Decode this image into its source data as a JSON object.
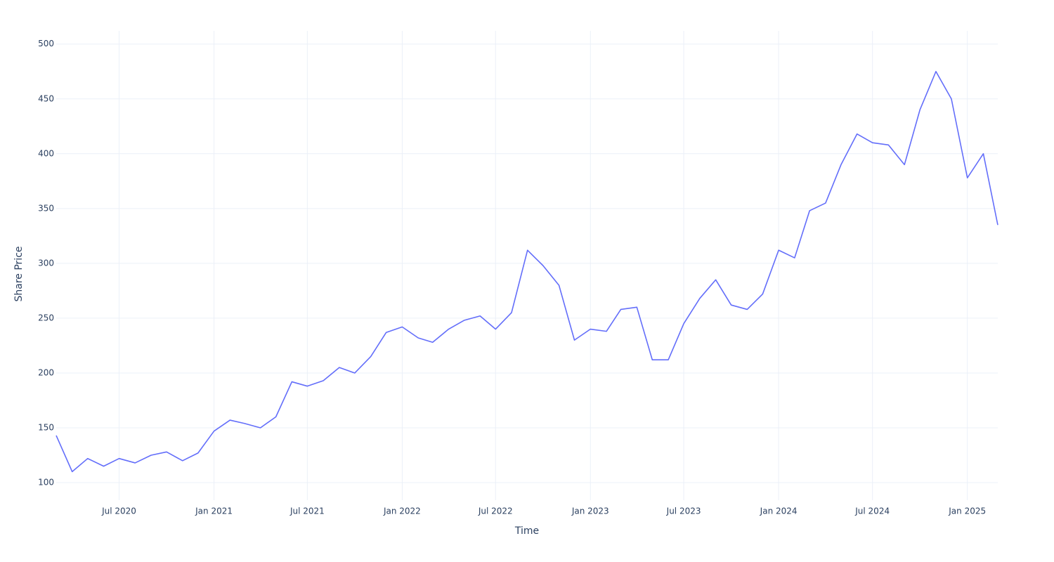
{
  "chart_data": {
    "type": "line",
    "x_label": "Time",
    "y_label": "Share Price",
    "x": [
      "2020-03",
      "2020-04",
      "2020-05",
      "2020-06",
      "2020-07",
      "2020-08",
      "2020-09",
      "2020-10",
      "2020-11",
      "2020-12",
      "2021-01",
      "2021-02",
      "2021-03",
      "2021-04",
      "2021-05",
      "2021-06",
      "2021-07",
      "2021-08",
      "2021-09",
      "2021-10",
      "2021-11",
      "2021-12",
      "2022-01",
      "2022-02",
      "2022-03",
      "2022-04",
      "2022-05",
      "2022-06",
      "2022-07",
      "2022-08",
      "2022-09",
      "2022-10",
      "2022-11",
      "2022-12",
      "2023-01",
      "2023-02",
      "2023-03",
      "2023-04",
      "2023-05",
      "2023-06",
      "2023-07",
      "2023-08",
      "2023-09",
      "2023-10",
      "2023-11",
      "2023-12",
      "2024-01",
      "2024-02",
      "2024-03",
      "2024-04",
      "2024-05",
      "2024-06",
      "2024-07",
      "2024-08",
      "2024-09",
      "2024-10",
      "2024-11",
      "2024-12",
      "2025-01",
      "2025-02",
      "2025-03"
    ],
    "series": [
      {
        "name": "Share Price",
        "color": "#636efa",
        "values": [
          143,
          110,
          122,
          115,
          122,
          118,
          125,
          128,
          120,
          127,
          147,
          157,
          154,
          150,
          160,
          192,
          188,
          193,
          205,
          200,
          215,
          237,
          242,
          232,
          228,
          240,
          248,
          252,
          240,
          255,
          312,
          298,
          280,
          230,
          240,
          238,
          258,
          260,
          212,
          212,
          245,
          268,
          285,
          262,
          258,
          272,
          312,
          305,
          348,
          355,
          390,
          418,
          410,
          408,
          390,
          440,
          475,
          450,
          378,
          400,
          335
        ]
      }
    ],
    "xlim": [
      "2020-03",
      "2025-03"
    ],
    "xticks": [
      {
        "value": "2020-07",
        "label": "Jul 2020"
      },
      {
        "value": "2021-01",
        "label": "Jan 2021"
      },
      {
        "value": "2021-07",
        "label": "Jul 2021"
      },
      {
        "value": "2022-01",
        "label": "Jan 2022"
      },
      {
        "value": "2022-07",
        "label": "Jul 2022"
      },
      {
        "value": "2023-01",
        "label": "Jan 2023"
      },
      {
        "value": "2023-07",
        "label": "Jul 2023"
      },
      {
        "value": "2024-01",
        "label": "Jan 2024"
      },
      {
        "value": "2024-07",
        "label": "Jul 2024"
      },
      {
        "value": "2025-01",
        "label": "Jan 2025"
      }
    ],
    "ylim": [
      84,
      512
    ],
    "yticks": [
      100,
      150,
      200,
      250,
      300,
      350,
      400,
      450,
      500
    ],
    "grid": true
  }
}
